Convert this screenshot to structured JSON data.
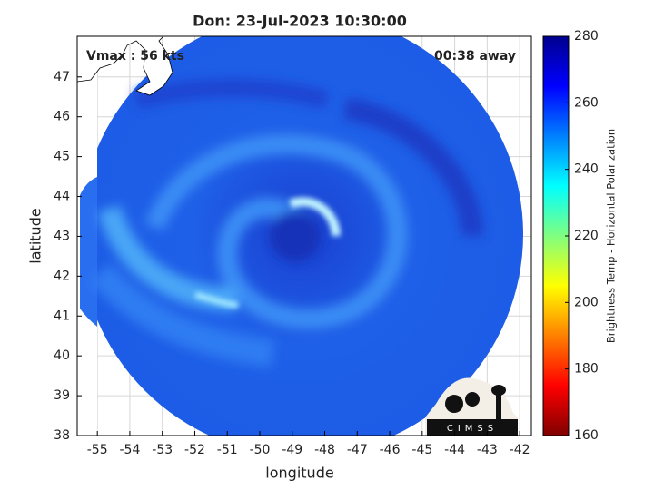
{
  "chart_data": {
    "type": "map",
    "title": "Don: 23-Jul-2023 10:30:00",
    "xlabel": "longitude",
    "ylabel": "latitude",
    "xlim": [
      -55.62,
      -41.64
    ],
    "ylim": [
      38,
      48.02
    ],
    "xticks": [
      -55,
      -54,
      -53,
      -52,
      -51,
      -50,
      -49,
      -48,
      -47,
      -46,
      -45,
      -44,
      -43,
      -42
    ],
    "yticks": [
      38,
      39,
      40,
      41,
      42,
      43,
      44,
      45,
      46,
      47
    ],
    "grid": true,
    "annotations": [
      "Vmax : 56 kts",
      "00:38 away"
    ],
    "logo": "CIMSS",
    "colorbar": {
      "label": "Brightness Temp - Horizontal Polarization",
      "clim": [
        160,
        280
      ],
      "ticks": [
        160,
        180,
        200,
        220,
        240,
        260,
        280
      ],
      "colormap": "jet"
    }
  }
}
